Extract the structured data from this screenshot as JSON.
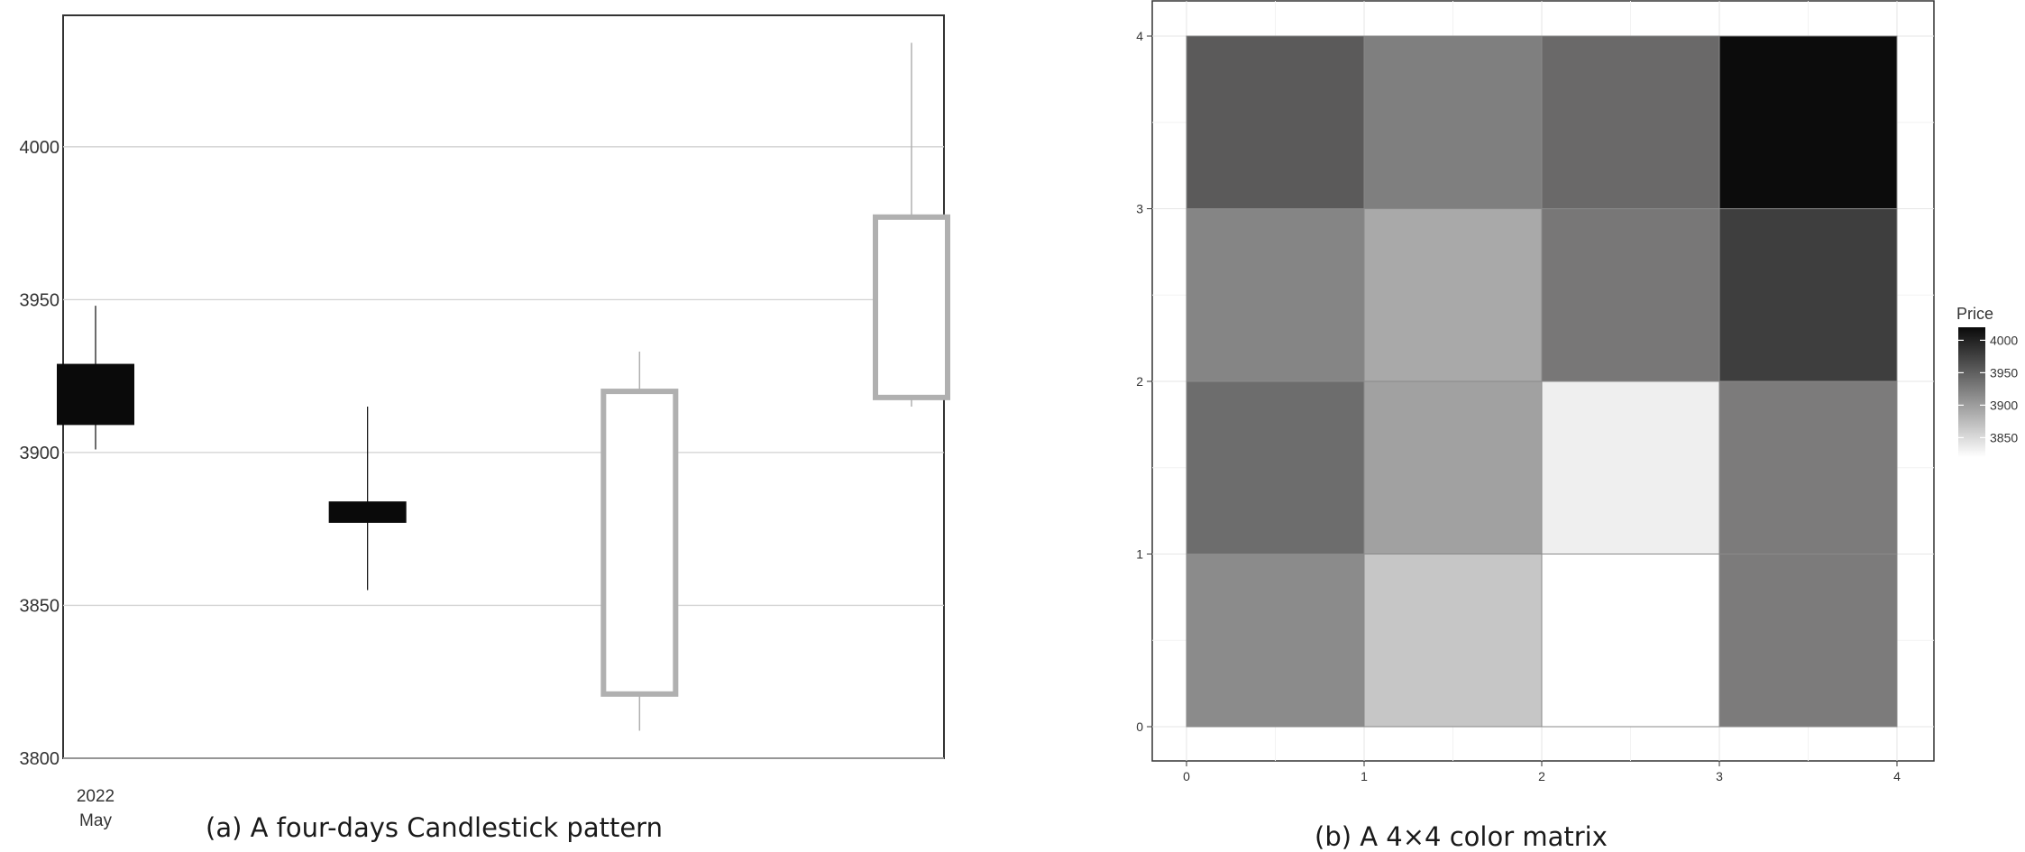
{
  "chart_data": [
    {
      "type": "candlestick",
      "caption": "(a) A four-days Candlestick pattern",
      "x_tick_label": [
        "2022",
        "May"
      ],
      "ylim": [
        3800,
        4043
      ],
      "yticks": [
        3800,
        3850,
        3900,
        3950,
        4000
      ],
      "grid": "horizontal",
      "up_color": "#b0b0b0",
      "down_color": "#0a0a0a",
      "candles": [
        {
          "day": 1,
          "open": 3929,
          "close": 3909,
          "high": 3948,
          "low": 3901,
          "direction": "down"
        },
        {
          "day": 2,
          "open": 3884,
          "close": 3877,
          "high": 3915,
          "low": 3855,
          "direction": "down"
        },
        {
          "day": 3,
          "open": 3821,
          "close": 3920,
          "high": 3933,
          "low": 3809,
          "direction": "up"
        },
        {
          "day": 4,
          "open": 3918,
          "close": 3977,
          "high": 4034,
          "low": 3915,
          "direction": "up"
        }
      ]
    },
    {
      "type": "heatmap",
      "caption": "(b) A  4×4  color matrix",
      "xticks": [
        0,
        1,
        2,
        3,
        4
      ],
      "yticks": [
        0,
        1,
        2,
        3,
        4
      ],
      "legend_title": "Price",
      "legend_ticks": [
        4000,
        3950,
        3900,
        3850
      ],
      "legend_range": [
        3820,
        4020
      ],
      "legend_placement": "right",
      "cell_rows_top_to_bottom": [
        [
          "#5b5a5a",
          "#7f7f7f",
          "#6a6969",
          "#0c0c0c"
        ],
        [
          "#858585",
          "#a9a9a9",
          "#787777",
          "#3e3e3e"
        ],
        [
          "#6d6d6d",
          "#a1a1a1",
          "#efefef",
          "#7c7b7b"
        ],
        [
          "#8b8b8b",
          "#c6c6c6",
          "#ffffff",
          "#7c7b7b"
        ]
      ]
    }
  ]
}
